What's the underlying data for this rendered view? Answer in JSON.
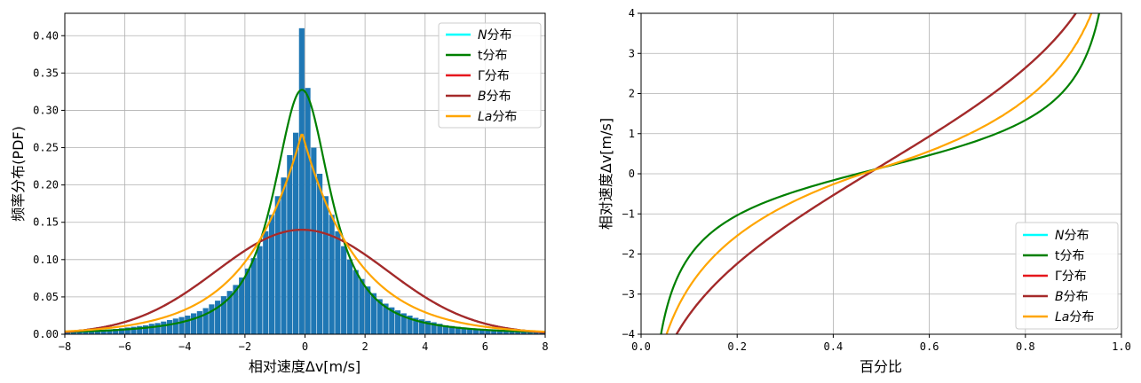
{
  "chart_data": [
    {
      "type": "bar",
      "xlabel": "相对速度Δv[m/s]",
      "ylabel": "频率分布(PDF)",
      "xlim": [
        -8,
        8
      ],
      "ylim": [
        0,
        0.43
      ],
      "xticks": [
        -8,
        -6,
        -4,
        -2,
        0,
        2,
        4,
        6,
        8
      ],
      "xtick_labels": [
        "−8",
        "−6",
        "−4",
        "−2",
        "0",
        "2",
        "4",
        "6",
        "8"
      ],
      "yticks": [
        0,
        0.05,
        0.1,
        0.15,
        0.2,
        0.25,
        0.3,
        0.35,
        0.4
      ],
      "ytick_labels": [
        "0.00",
        "0.05",
        "0.10",
        "0.15",
        "0.20",
        "0.25",
        "0.30",
        "0.35",
        "0.40"
      ],
      "grid": true,
      "legend_position": "top-right",
      "histogram": {
        "color": "#1f77b4",
        "bin_width": 0.2,
        "bin_centers": [
          -7.9,
          -7.7,
          -7.5,
          -7.3,
          -7.1,
          -6.9,
          -6.7,
          -6.5,
          -6.3,
          -6.1,
          -5.9,
          -5.7,
          -5.5,
          -5.3,
          -5.1,
          -4.9,
          -4.7,
          -4.5,
          -4.3,
          -4.1,
          -3.9,
          -3.7,
          -3.5,
          -3.3,
          -3.1,
          -2.9,
          -2.7,
          -2.5,
          -2.3,
          -2.1,
          -1.9,
          -1.7,
          -1.5,
          -1.3,
          -1.1,
          -0.9,
          -0.7,
          -0.5,
          -0.3,
          -0.1,
          0.1,
          0.3,
          0.5,
          0.7,
          0.9,
          1.1,
          1.3,
          1.5,
          1.7,
          1.9,
          2.1,
          2.3,
          2.5,
          2.7,
          2.9,
          3.1,
          3.3,
          3.5,
          3.7,
          3.9,
          4.1,
          4.3,
          4.5,
          4.7,
          4.9,
          5.1,
          5.3,
          5.5,
          5.7,
          5.9,
          6.1,
          6.3,
          6.5,
          6.7,
          6.9,
          7.1,
          7.3,
          7.5,
          7.7,
          7.9
        ],
        "values": [
          0.003,
          0.003,
          0.004,
          0.004,
          0.005,
          0.005,
          0.006,
          0.006,
          0.007,
          0.008,
          0.009,
          0.01,
          0.011,
          0.012,
          0.014,
          0.015,
          0.017,
          0.019,
          0.021,
          0.023,
          0.025,
          0.028,
          0.031,
          0.035,
          0.04,
          0.045,
          0.051,
          0.058,
          0.066,
          0.076,
          0.088,
          0.102,
          0.118,
          0.138,
          0.16,
          0.185,
          0.21,
          0.24,
          0.27,
          0.41,
          0.33,
          0.25,
          0.215,
          0.185,
          0.16,
          0.138,
          0.118,
          0.1,
          0.086,
          0.074,
          0.064,
          0.055,
          0.047,
          0.041,
          0.036,
          0.032,
          0.028,
          0.025,
          0.022,
          0.02,
          0.018,
          0.016,
          0.014,
          0.012,
          0.011,
          0.01,
          0.009,
          0.008,
          0.007,
          0.006,
          0.006,
          0.005,
          0.005,
          0.004,
          0.004,
          0.004,
          0.003,
          0.003,
          0.003,
          0.003
        ]
      },
      "series": [
        {
          "name": "N分布",
          "name_italic": "N",
          "name_rest": "分布",
          "color": "#00ffff",
          "params": {
            "kind": "normal",
            "mu": -0.1,
            "sigma": 2.85
          }
        },
        {
          "name": "t分布",
          "name_italic": "",
          "name_rest": "t分布",
          "color": "#008000",
          "params": {
            "kind": "t",
            "mu": -0.1,
            "scale": 1.05,
            "df": 1.6
          }
        },
        {
          "name": "Γ分布",
          "name_italic": "",
          "name_rest": "Γ分布",
          "color": "#e6161c",
          "params": {
            "kind": "normal",
            "mu": -0.1,
            "sigma": 2.85
          }
        },
        {
          "name": "B分布",
          "name_italic": "B",
          "name_rest": "分布",
          "color": "#a52a2a",
          "params": {
            "kind": "normal",
            "mu": -0.1,
            "sigma": 2.85
          }
        },
        {
          "name": "La分布",
          "name_italic": "La",
          "name_rest": "分布",
          "color": "#ffa500",
          "params": {
            "kind": "laplace",
            "mu": -0.1,
            "b": 1.85
          }
        }
      ]
    },
    {
      "type": "line",
      "xlabel": "百分比",
      "ylabel": "相对速度Δv[m/s]",
      "xlim": [
        0,
        1
      ],
      "ylim": [
        -4,
        4
      ],
      "xticks": [
        0,
        0.2,
        0.4,
        0.6,
        0.8,
        1.0
      ],
      "xtick_labels": [
        "0.0",
        "0.2",
        "0.4",
        "0.6",
        "0.8",
        "1.0"
      ],
      "yticks": [
        -4,
        -3,
        -2,
        -1,
        0,
        1,
        2,
        3,
        4
      ],
      "ytick_labels": [
        "−4",
        "−3",
        "−2",
        "−1",
        "0",
        "1",
        "2",
        "3",
        "4"
      ],
      "grid": true,
      "legend_position": "bottom-right",
      "series": [
        {
          "name": "N分布",
          "name_italic": "N",
          "name_rest": "分布",
          "color": "#00ffff",
          "params": {
            "kind": "normal",
            "mu": 0.2,
            "sigma": 2.9
          }
        },
        {
          "name": "t分布",
          "name_italic": "",
          "name_rest": "t分布",
          "color": "#008000",
          "params": {
            "kind": "t",
            "mu": 0.15,
            "scale": 1.05,
            "df": 1.6
          }
        },
        {
          "name": "Γ分布",
          "name_italic": "",
          "name_rest": "Γ分布",
          "color": "#e6161c",
          "params": {
            "kind": "normal",
            "mu": 0.2,
            "sigma": 2.9
          }
        },
        {
          "name": "B分布",
          "name_italic": "B",
          "name_rest": "分布",
          "color": "#a52a2a",
          "params": {
            "kind": "normal",
            "mu": 0.2,
            "sigma": 2.9
          }
        },
        {
          "name": "La分布",
          "name_italic": "La",
          "name_rest": "分布",
          "color": "#ffa500",
          "params": {
            "kind": "laplace",
            "mu": 0.15,
            "b": 1.85
          }
        }
      ]
    }
  ]
}
